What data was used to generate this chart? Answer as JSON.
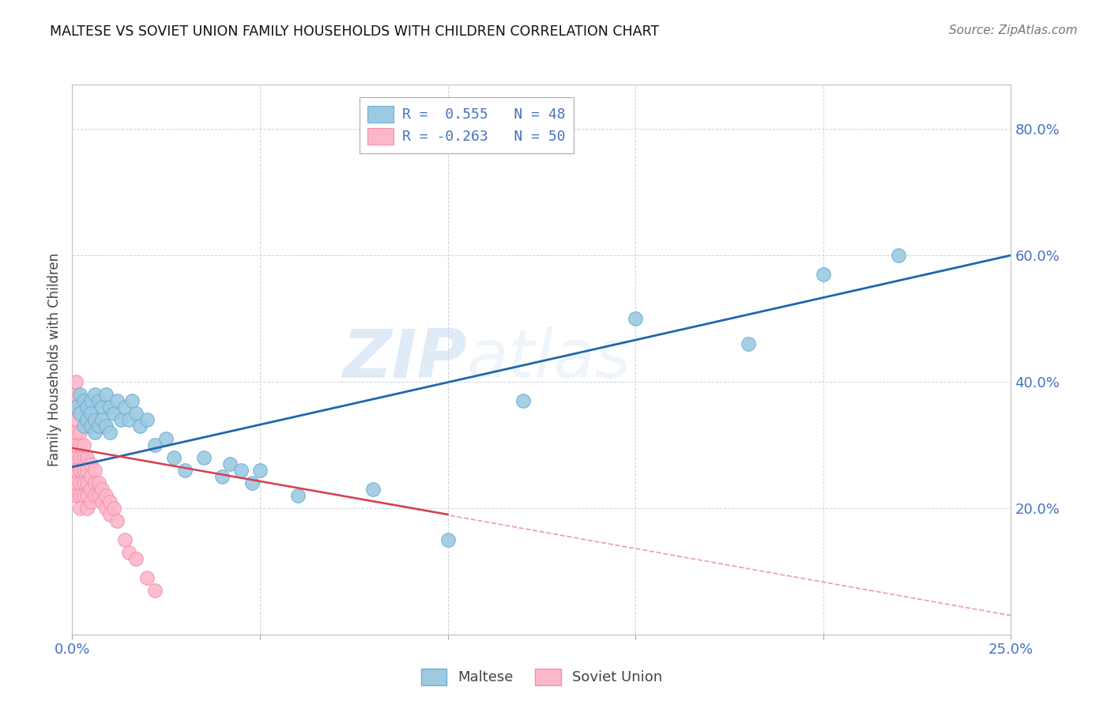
{
  "title": "MALTESE VS SOVIET UNION FAMILY HOUSEHOLDS WITH CHILDREN CORRELATION CHART",
  "source": "Source: ZipAtlas.com",
  "ylabel_label": "Family Households with Children",
  "xlim": [
    0.0,
    0.25
  ],
  "ylim": [
    0.0,
    0.87
  ],
  "maltese_color": "#9ecae1",
  "soviet_color": "#fcb8c8",
  "maltese_edge": "#6baed6",
  "soviet_edge": "#f48fb1",
  "trend_blue": "#2166ac",
  "trend_red": "#d6404e",
  "trend_red_dashed": "#e8a0a8",
  "R_maltese": 0.555,
  "N_maltese": 48,
  "R_soviet": -0.263,
  "N_soviet": 50,
  "watermark": "ZIPatlas",
  "axis_color": "#4472c4",
  "grid_color": "#d0d0e0",
  "maltese_x": [
    0.001,
    0.002,
    0.002,
    0.003,
    0.003,
    0.004,
    0.004,
    0.005,
    0.005,
    0.005,
    0.006,
    0.006,
    0.006,
    0.007,
    0.007,
    0.008,
    0.008,
    0.009,
    0.009,
    0.01,
    0.01,
    0.011,
    0.012,
    0.013,
    0.014,
    0.015,
    0.016,
    0.017,
    0.018,
    0.02,
    0.022,
    0.025,
    0.027,
    0.03,
    0.035,
    0.04,
    0.042,
    0.045,
    0.048,
    0.05,
    0.06,
    0.08,
    0.1,
    0.12,
    0.15,
    0.18,
    0.2,
    0.22
  ],
  "maltese_y": [
    0.36,
    0.38,
    0.35,
    0.37,
    0.33,
    0.36,
    0.34,
    0.37,
    0.33,
    0.35,
    0.38,
    0.34,
    0.32,
    0.37,
    0.33,
    0.36,
    0.34,
    0.38,
    0.33,
    0.36,
    0.32,
    0.35,
    0.37,
    0.34,
    0.36,
    0.34,
    0.37,
    0.35,
    0.33,
    0.34,
    0.3,
    0.31,
    0.28,
    0.26,
    0.28,
    0.25,
    0.27,
    0.26,
    0.24,
    0.26,
    0.22,
    0.23,
    0.15,
    0.37,
    0.5,
    0.46,
    0.57,
    0.6
  ],
  "soviet_x": [
    0.001,
    0.001,
    0.001,
    0.001,
    0.001,
    0.001,
    0.001,
    0.001,
    0.001,
    0.001,
    0.002,
    0.002,
    0.002,
    0.002,
    0.002,
    0.002,
    0.002,
    0.002,
    0.003,
    0.003,
    0.003,
    0.003,
    0.003,
    0.004,
    0.004,
    0.004,
    0.004,
    0.004,
    0.005,
    0.005,
    0.005,
    0.005,
    0.006,
    0.006,
    0.006,
    0.007,
    0.007,
    0.008,
    0.008,
    0.009,
    0.009,
    0.01,
    0.01,
    0.011,
    0.012,
    0.014,
    0.015,
    0.017,
    0.02,
    0.022
  ],
  "soviet_y": [
    0.28,
    0.3,
    0.32,
    0.34,
    0.36,
    0.38,
    0.4,
    0.26,
    0.24,
    0.22,
    0.3,
    0.32,
    0.35,
    0.28,
    0.26,
    0.24,
    0.22,
    0.2,
    0.3,
    0.28,
    0.26,
    0.24,
    0.22,
    0.28,
    0.26,
    0.24,
    0.22,
    0.2,
    0.27,
    0.25,
    0.23,
    0.21,
    0.26,
    0.24,
    0.22,
    0.24,
    0.22,
    0.23,
    0.21,
    0.22,
    0.2,
    0.21,
    0.19,
    0.2,
    0.18,
    0.15,
    0.13,
    0.12,
    0.09,
    0.07
  ],
  "trend_blue_x0": 0.0,
  "trend_blue_y0": 0.265,
  "trend_blue_x1": 0.25,
  "trend_blue_y1": 0.6,
  "trend_red_x0": 0.0,
  "trend_red_y0": 0.295,
  "trend_red_x1": 0.1,
  "trend_red_y1": 0.19,
  "trend_dashed_x0": 0.0,
  "trend_dashed_y0": 0.295,
  "trend_dashed_x1": 0.25,
  "trend_dashed_y1": 0.03
}
